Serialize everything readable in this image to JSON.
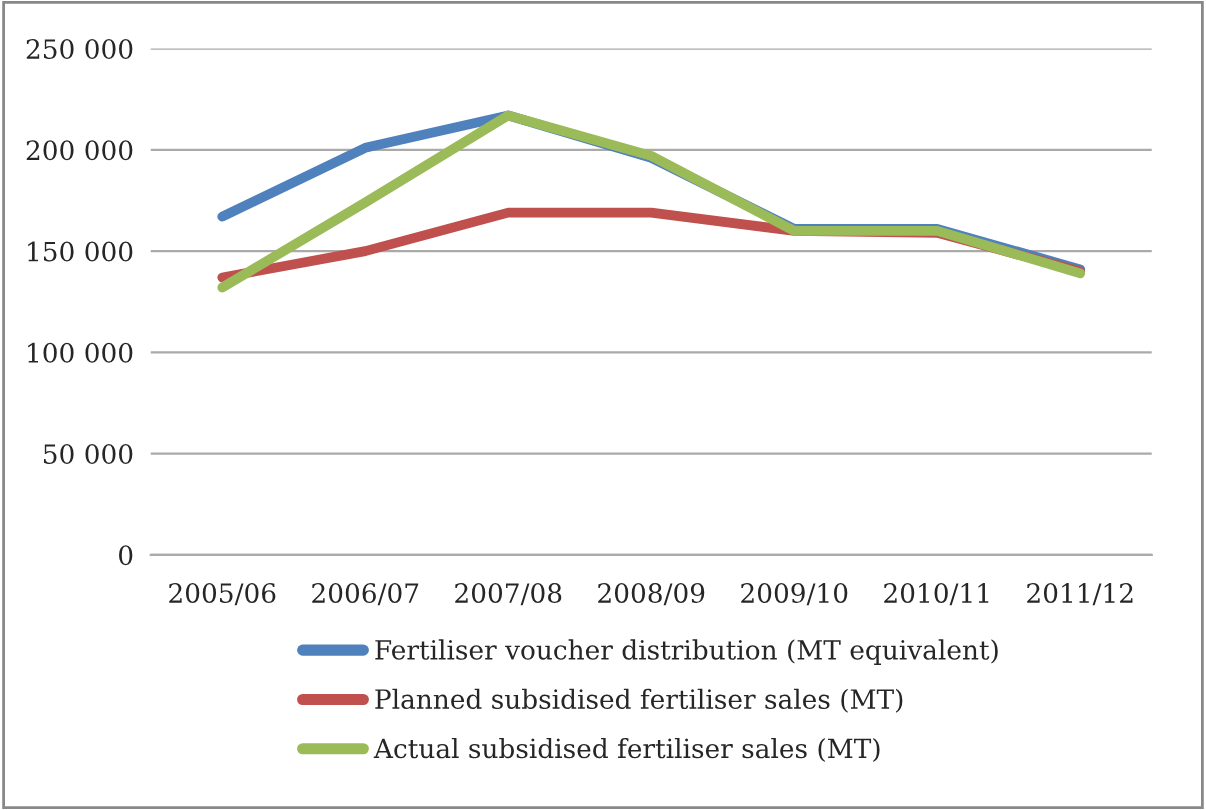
{
  "chart_data": {
    "type": "line",
    "categories": [
      "2005/06",
      "2006/07",
      "2007/08",
      "2008/09",
      "2009/10",
      "2010/11",
      "2011/12"
    ],
    "series": [
      {
        "name": "Fertiliser voucher distribution (MT equivalent)",
        "color": "#4f81bd",
        "values": [
          167000,
          201000,
          217000,
          196000,
          161000,
          161000,
          141000
        ]
      },
      {
        "name": "Planned subsidised fertiliser sales (MT)",
        "color": "#c0504d",
        "values": [
          137000,
          150000,
          169000,
          169000,
          160000,
          159000,
          140000
        ]
      },
      {
        "name": "Actual subsidised fertiliser sales (MT)",
        "color": "#9bbb59",
        "values": [
          132000,
          174000,
          217000,
          197000,
          160000,
          160000,
          139000
        ]
      }
    ],
    "ylim": [
      0,
      250000
    ],
    "yticks": [
      {
        "value": 0,
        "label": "0"
      },
      {
        "value": 50000,
        "label": "50 000"
      },
      {
        "value": 100000,
        "label": "100 000"
      },
      {
        "value": 150000,
        "label": "150 000"
      },
      {
        "value": 200000,
        "label": "200 000"
      },
      {
        "value": 250000,
        "label": "250 000"
      }
    ],
    "grid": "y",
    "legend": "bottom",
    "marker": "none",
    "line_style": "solid"
  }
}
